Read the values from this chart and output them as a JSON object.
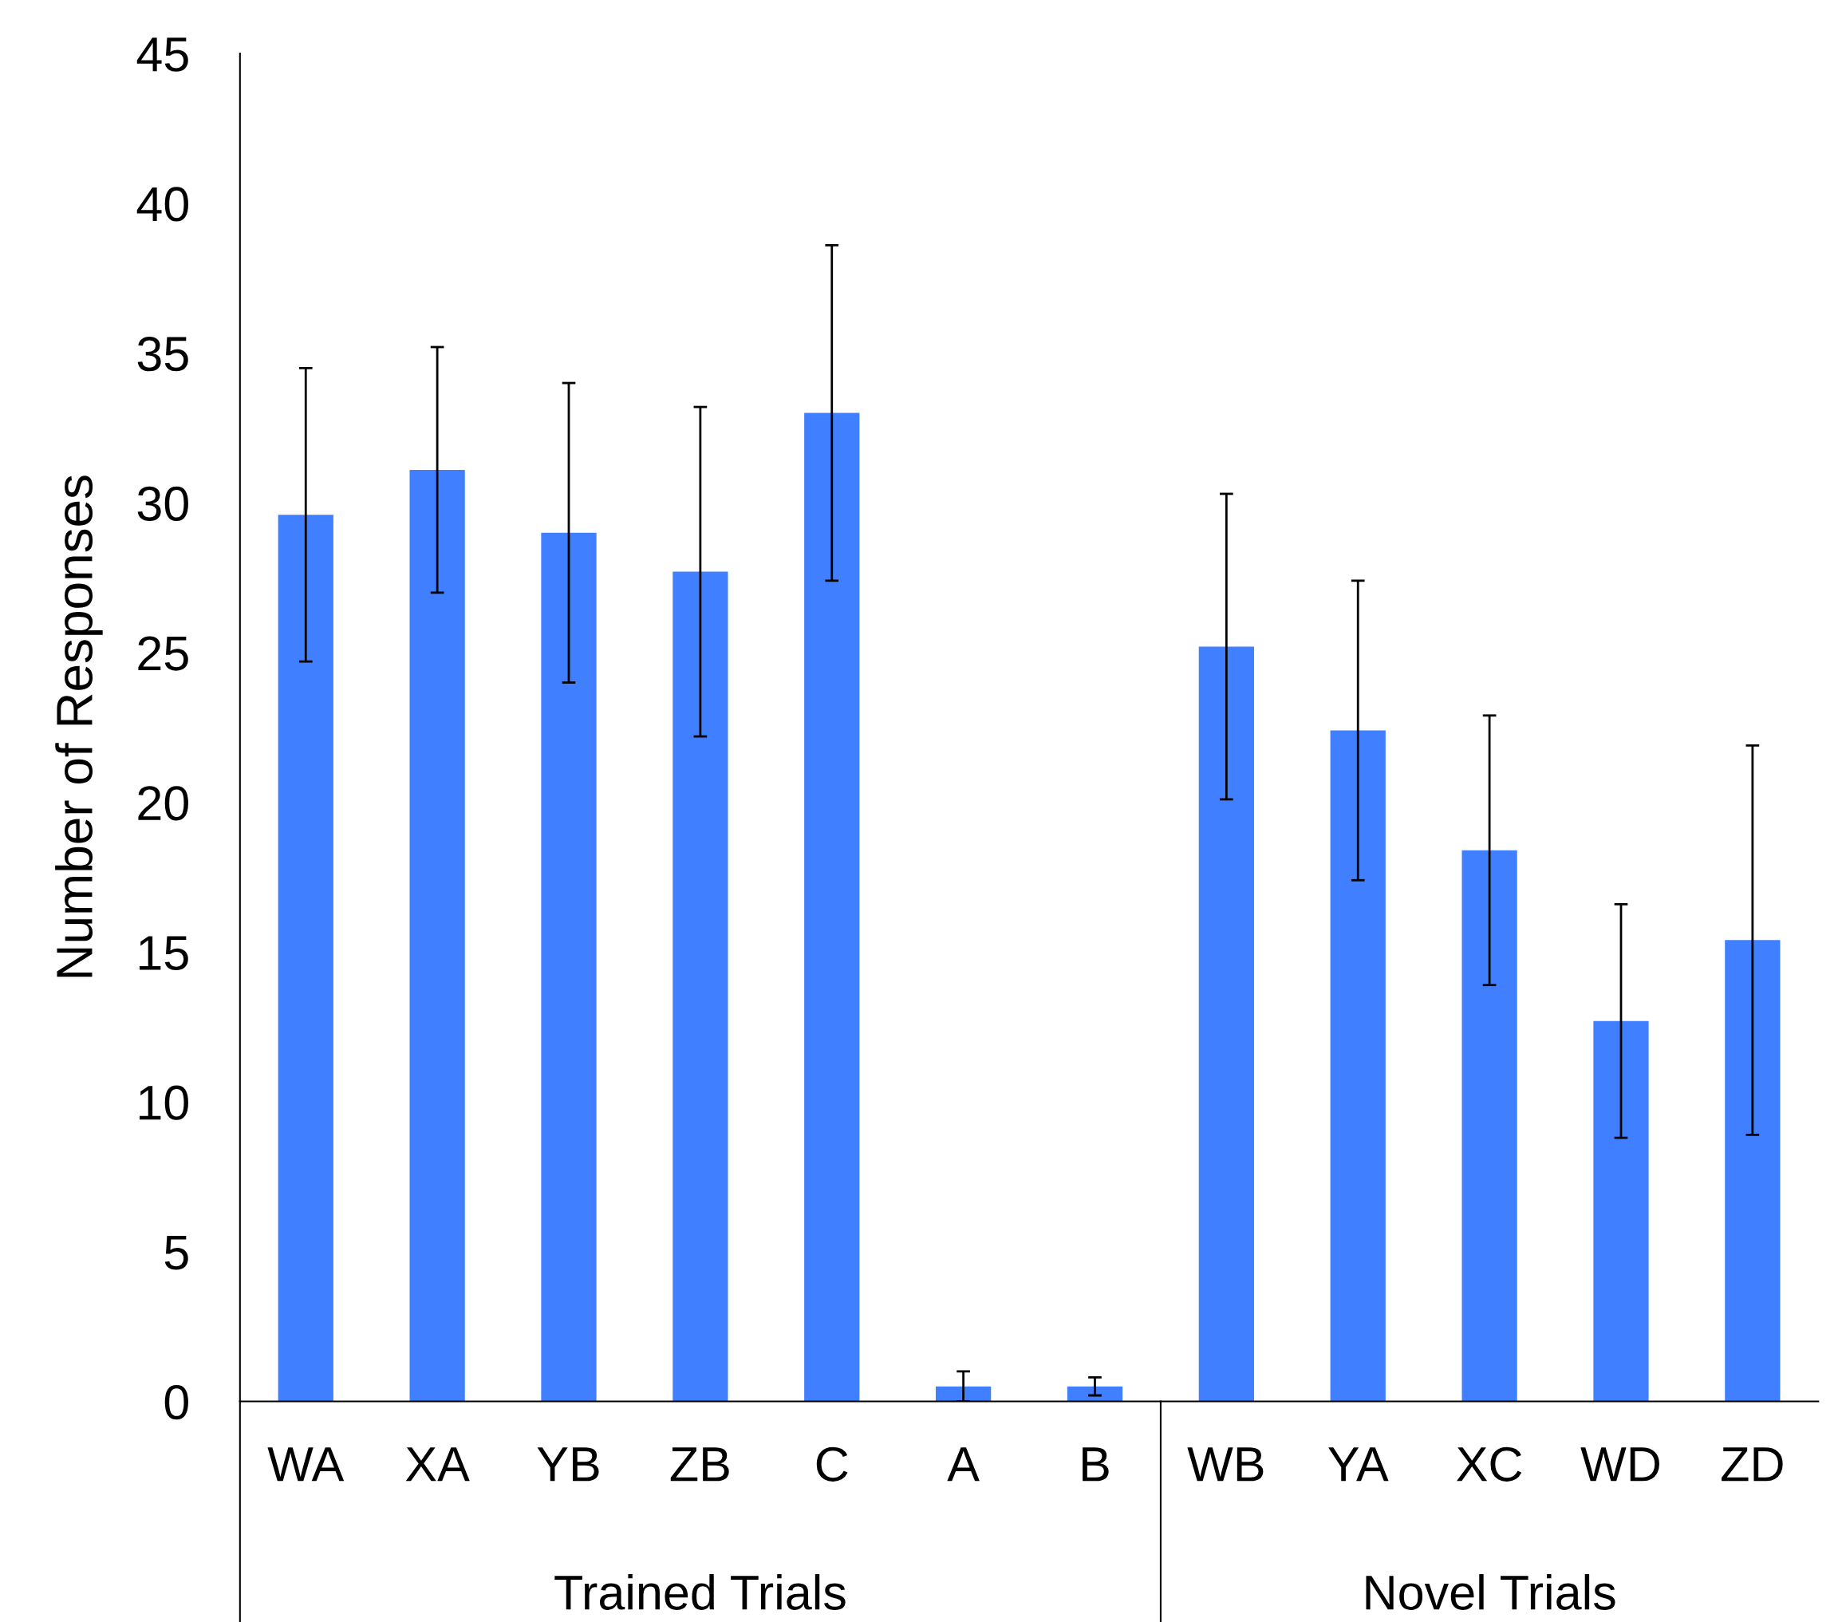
{
  "chart_data": {
    "type": "bar",
    "ylabel": "Number of Responses",
    "categories": [
      "WA",
      "XA",
      "YB",
      "ZB",
      "C",
      "A",
      "B",
      "WB",
      "YA",
      "XC",
      "WD",
      "ZD"
    ],
    "values": [
      29.6,
      31.1,
      29.0,
      27.7,
      33.0,
      0.5,
      0.5,
      25.2,
      22.4,
      18.4,
      12.7,
      15.4
    ],
    "errors": [
      4.9,
      4.1,
      5.0,
      5.5,
      5.6,
      0.5,
      0.3,
      5.1,
      5.0,
      4.5,
      3.9,
      6.5
    ],
    "color": "#407fff",
    "ylim": [
      0,
      45
    ],
    "yticks": [
      0,
      5,
      10,
      15,
      20,
      25,
      30,
      35,
      40,
      45
    ],
    "annotations": [
      "Trained Trials",
      "Novel Trials"
    ]
  }
}
